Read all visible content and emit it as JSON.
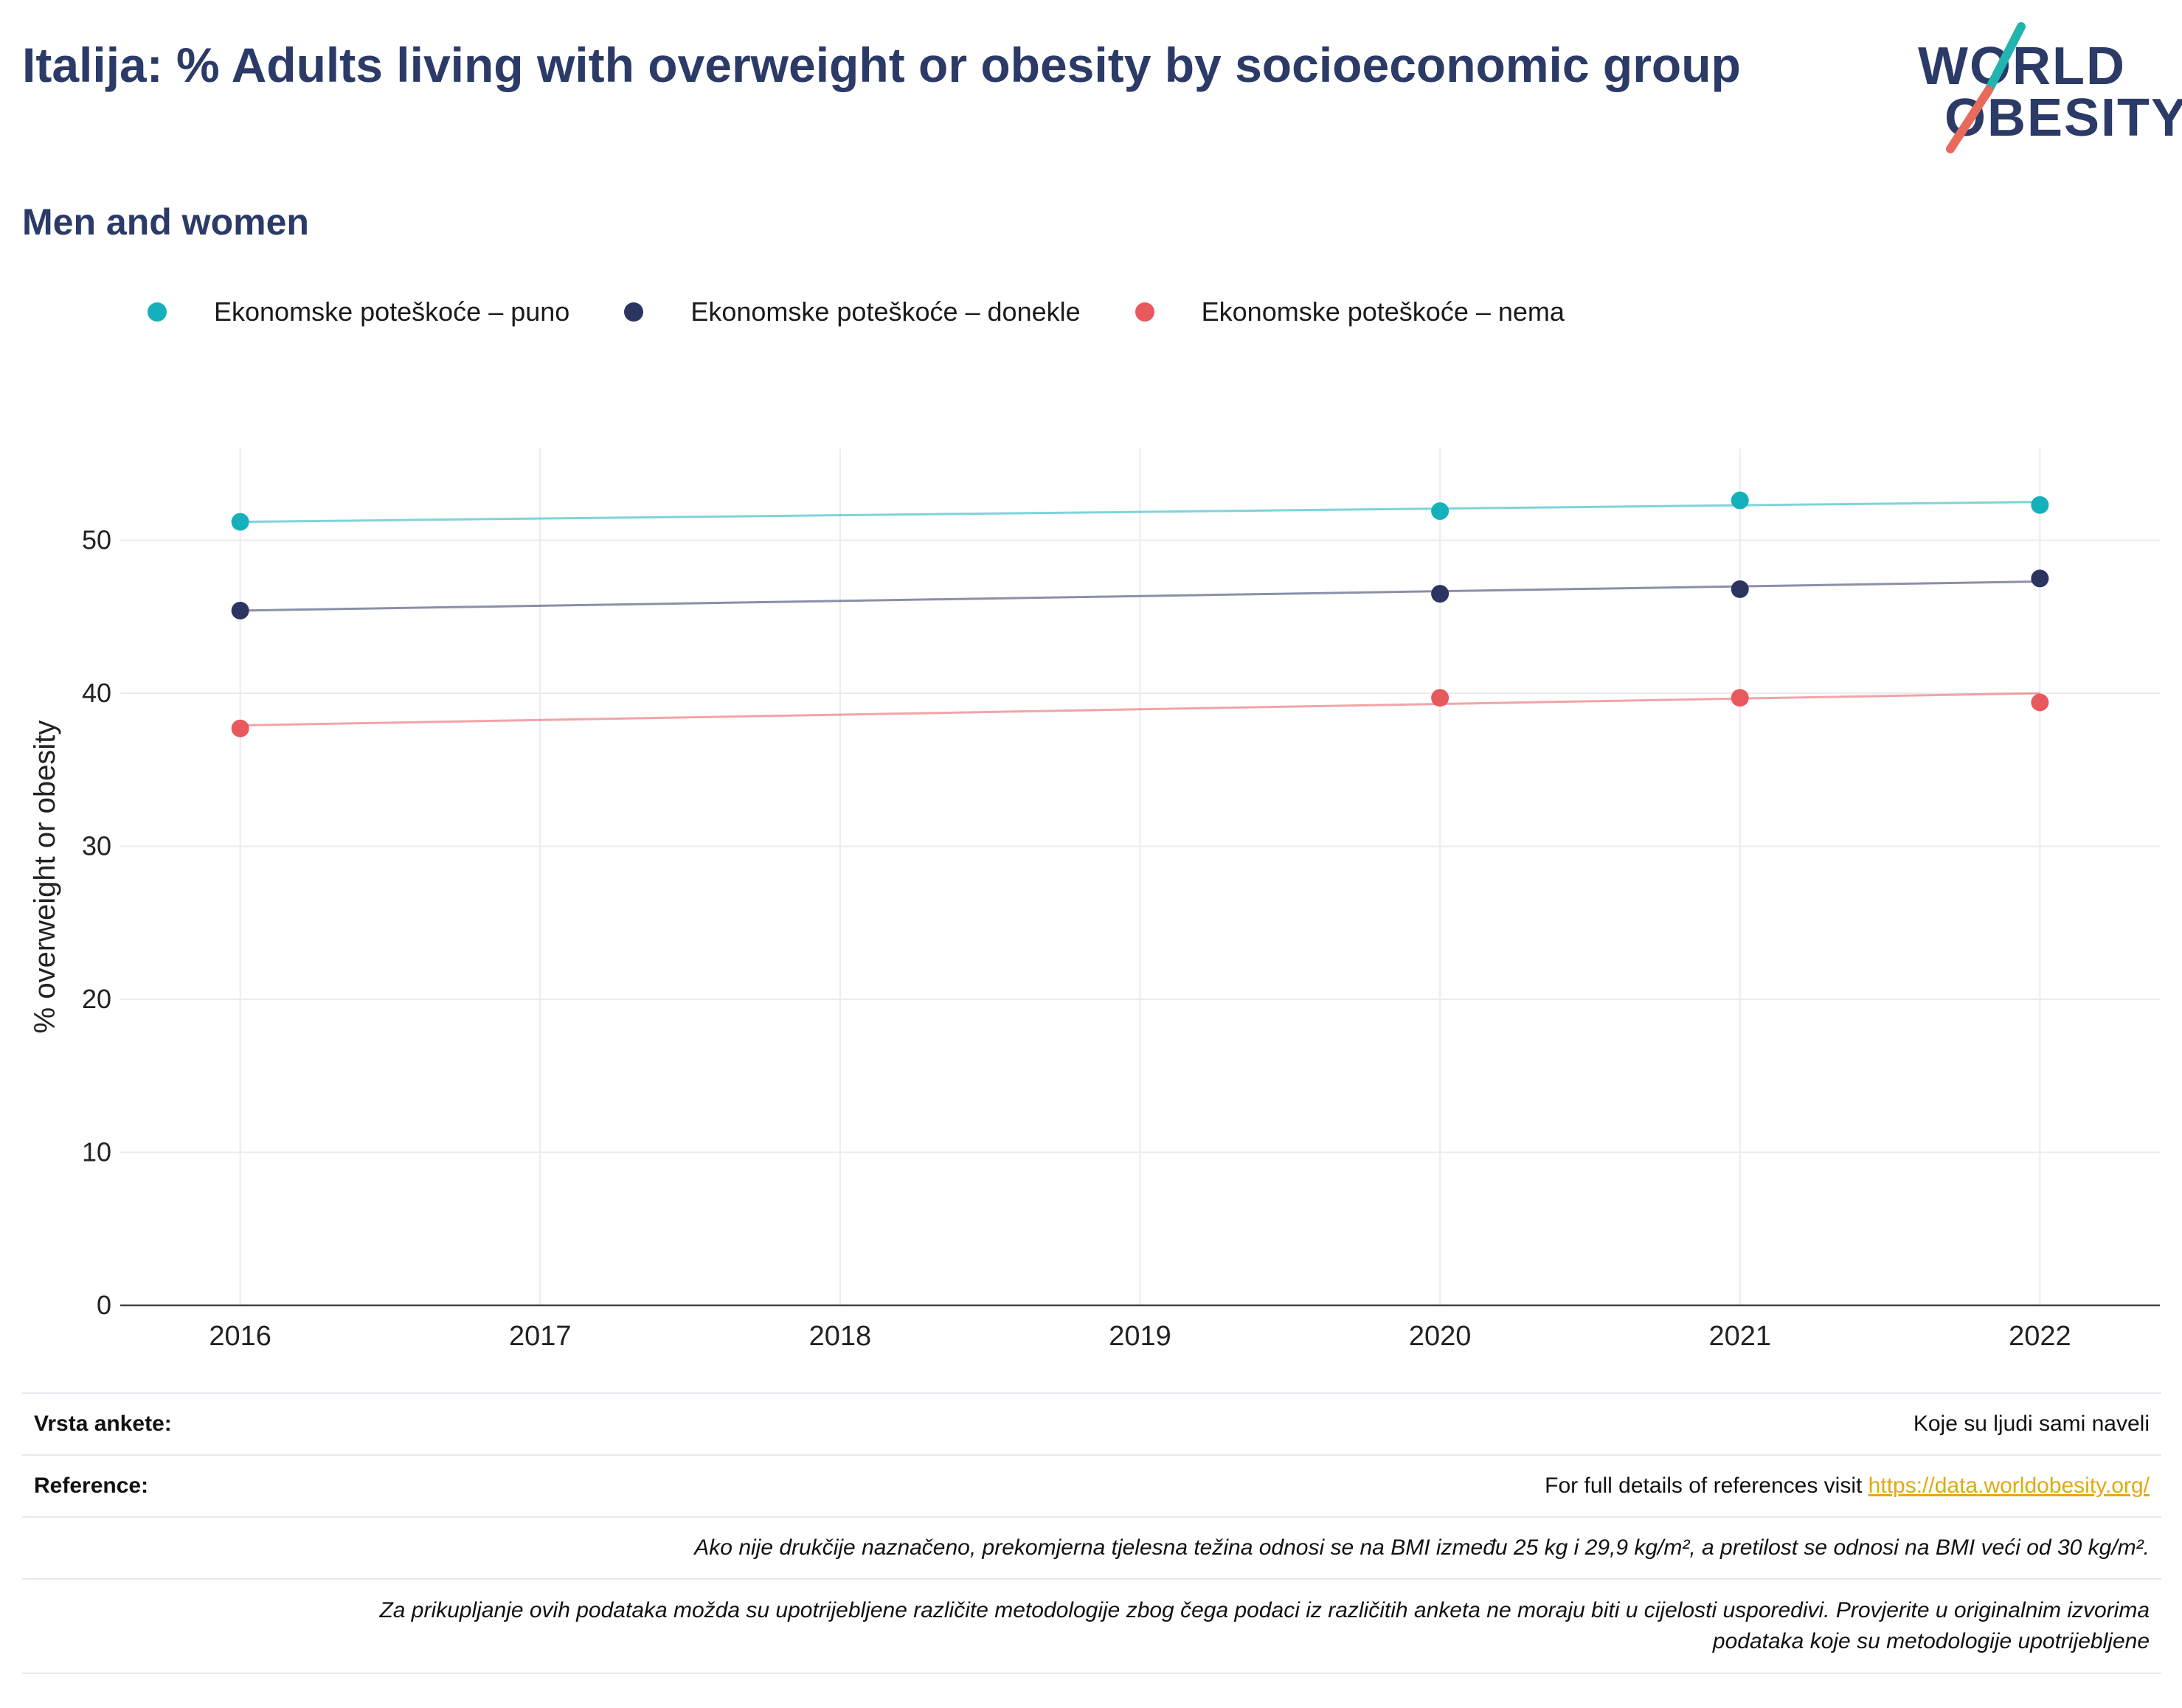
{
  "header": {
    "title": "Italija: % Adults living with overweight or obesity by socioeconomic group",
    "subtitle": "Men and women",
    "logo_line1": "WORLD",
    "logo_line2": "OBESITY"
  },
  "colors": {
    "puno": "#14b1bc",
    "donekle": "#2b3560",
    "nema": "#e8595e",
    "grid": "#ebebeb",
    "axis": "#444444"
  },
  "chart_data": {
    "type": "line",
    "ylabel": "% overweight or obesity",
    "xlabel": "",
    "ylim": [
      0,
      56
    ],
    "yticks": [
      0,
      10,
      20,
      30,
      40,
      50
    ],
    "xlim": [
      2015.6,
      2022.4
    ],
    "xticks": [
      2016,
      2017,
      2018,
      2019,
      2020,
      2021,
      2022
    ],
    "legend_position": "top",
    "grid": true,
    "series": [
      {
        "name": "Ekonomske poteškoće – puno",
        "color_key": "puno",
        "points": [
          [
            2016,
            51.2
          ],
          [
            2020,
            51.9
          ],
          [
            2021,
            52.6
          ],
          [
            2022,
            52.3
          ]
        ],
        "trend": [
          [
            2016,
            51.2
          ],
          [
            2022,
            52.5
          ]
        ]
      },
      {
        "name": "Ekonomske poteškoće – donekle",
        "color_key": "donekle",
        "points": [
          [
            2016,
            45.4
          ],
          [
            2020,
            46.5
          ],
          [
            2021,
            46.8
          ],
          [
            2022,
            47.5
          ]
        ],
        "trend": [
          [
            2016,
            45.4
          ],
          [
            2022,
            47.3
          ]
        ]
      },
      {
        "name": "Ekonomske poteškoće – nema",
        "color_key": "nema",
        "points": [
          [
            2016,
            37.7
          ],
          [
            2020,
            39.7
          ],
          [
            2021,
            39.7
          ],
          [
            2022,
            39.4
          ]
        ],
        "trend": [
          [
            2016,
            37.9
          ],
          [
            2022,
            40.0
          ]
        ]
      }
    ]
  },
  "footer": {
    "survey_label": "Vrsta ankete:",
    "survey_value": "Koje su ljudi sami naveli",
    "ref_label": "Reference:",
    "ref_text": "For full details of references visit ",
    "ref_link": "https://data.worldobesity.org/",
    "note1": "Ako nije drukčije naznačeno, prekomjerna tjelesna težina odnosi se na BMI između 25 kg i 29,9 kg/m², a pretilost se odnosi na BMI veći od 30 kg/m².",
    "note2a": "Za prikupljanje ovih podataka možda su upotrijebljene različite metodologije zbog čega podaci iz različitih anketa ne moraju biti u cijelosti usporedivi. Provjerite u originalnim izvorima",
    "note2b": "podataka koje su metodologije upotrijebljene"
  }
}
